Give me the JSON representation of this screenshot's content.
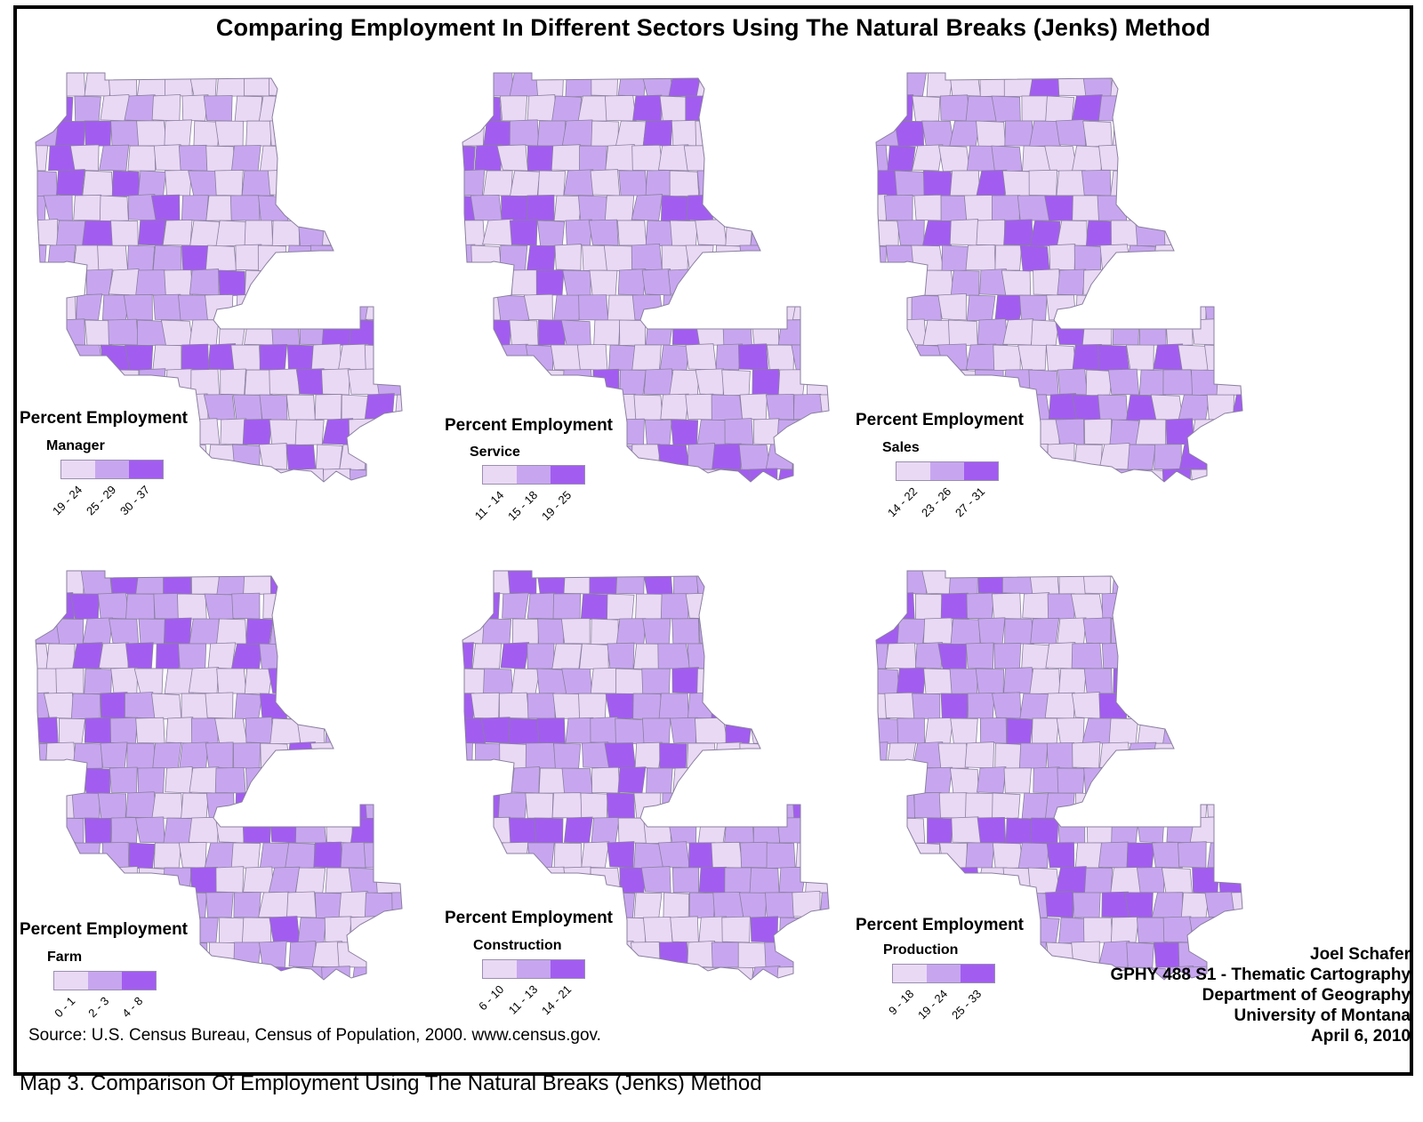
{
  "title": "Comparing Employment In Different Sectors Using The Natural Breaks (Jenks) Method",
  "colors": {
    "class1": "#ead9f4",
    "class2": "#c7a6ef",
    "class3": "#a25df0",
    "county_border": "#8a7fa0",
    "frame": "#000000"
  },
  "panels": [
    {
      "legend_title": "Percent Employment",
      "sector": "Manager",
      "classes": [
        "19 - 24",
        "25 - 29",
        "30 - 37"
      ]
    },
    {
      "legend_title": "Percent Employment",
      "sector": "Service",
      "classes": [
        "11 - 14",
        "15 - 18",
        "19 - 25"
      ]
    },
    {
      "legend_title": "Percent Employment",
      "sector": "Sales",
      "classes": [
        "14 - 22",
        "23 - 26",
        "27 - 31"
      ]
    },
    {
      "legend_title": "Percent Employment",
      "sector": "Farm",
      "classes": [
        "0 - 1",
        "2 - 3",
        "4 - 8"
      ]
    },
    {
      "legend_title": "Percent Employment",
      "sector": "Construction",
      "classes": [
        "6 - 10",
        "11 - 13",
        "14 - 21"
      ]
    },
    {
      "legend_title": "Percent Employment",
      "sector": "Production",
      "classes": [
        "9 - 18",
        "19 - 24",
        "25 - 33"
      ]
    }
  ],
  "source": "Source:  U.S. Census Bureau, Census of Population, 2000.  www.census.gov.",
  "credits": [
    "Joel Schafer",
    "GPHY 488 S1 - Thematic Cartography",
    "Department of Geography",
    "University of Montana",
    "April 6, 2010"
  ],
  "caption": "Map 3.  Comparison Of Employment Using The Natural Breaks (Jenks) Method"
}
